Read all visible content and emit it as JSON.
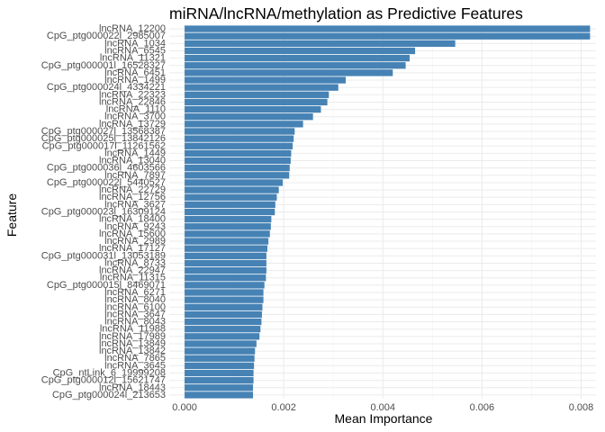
{
  "chart_data": {
    "type": "bar",
    "orientation": "horizontal",
    "title": "miRNA/lncRNA/methylation as Predictive Features",
    "xlabel": "Mean Importance",
    "ylabel": "Feature",
    "xlim": [
      -0.00031,
      0.0083
    ],
    "xticks": [
      0,
      0.002,
      0.004,
      0.006,
      0.008
    ],
    "xtick_labels": [
      "0.000",
      "0.002",
      "0.004",
      "0.006",
      "0.008"
    ],
    "grid": true,
    "legend": "none",
    "bar_color": "#4682b4",
    "categories": [
      "lncRNA_12200",
      "CpG_ptg000022l_2985007",
      "lncRNA_1034",
      "lncRNA_6545",
      "lncRNA_11321",
      "CpG_ptg000001l_16528327",
      "lncRNA_6451",
      "lncRNA_1499",
      "CpG_ptg000024l_4334221",
      "lncRNA_22323",
      "lncRNA_22846",
      "lncRNA_1110",
      "lncRNA_3700",
      "lncRNA_13729",
      "CpG_ptg000027l_13568387",
      "CpG_ptg000025l_13842126",
      "CpG_ptg000017l_11261562",
      "lncRNA_1449",
      "lncRNA_13040",
      "CpG_ptg000036l_4603566",
      "lncRNA_7897",
      "CpG_ptg000022l_5440527",
      "lncRNA_22729",
      "lncRNA_12756",
      "lncRNA_3627",
      "CpG_ptg000023l_16309124",
      "lncRNA_18400",
      "lncRNA_9243",
      "lncRNA_15600",
      "lncRNA_2989",
      "lncRNA_17127",
      "CpG_ptg000031l_13053189",
      "lncRNA_8733",
      "lncRNA_22947",
      "lncRNA_11315",
      "CpG_ptg000015l_8469071",
      "lncRNA_6271",
      "lncRNA_8040",
      "lncRNA_6100",
      "lncRNA_3647",
      "lncRNA_8043",
      "lncRNA_11988",
      "lncRNA_17989",
      "lncRNA_13849",
      "lncRNA_13842",
      "lncRNA_7865",
      "lncRNA_3645",
      "CpG_ntLink_6_19999208",
      "CpG_ptg000012l_15621747",
      "lncRNA_18443",
      "CpG_ptg000024l_213653"
    ],
    "values": [
      0.00818,
      0.00818,
      0.00546,
      0.00465,
      0.00454,
      0.00446,
      0.0042,
      0.00325,
      0.0031,
      0.00291,
      0.00288,
      0.00275,
      0.00259,
      0.00239,
      0.00222,
      0.0022,
      0.00218,
      0.00215,
      0.00214,
      0.00212,
      0.00211,
      0.00198,
      0.0019,
      0.00186,
      0.00183,
      0.00182,
      0.00175,
      0.00174,
      0.00172,
      0.00169,
      0.00167,
      0.00165,
      0.00165,
      0.00165,
      0.00164,
      0.00161,
      0.00159,
      0.00159,
      0.00157,
      0.00156,
      0.00155,
      0.00153,
      0.00151,
      0.00145,
      0.00142,
      0.00141,
      0.0014,
      0.00139,
      0.00139,
      0.00138,
      0.00138
    ]
  }
}
